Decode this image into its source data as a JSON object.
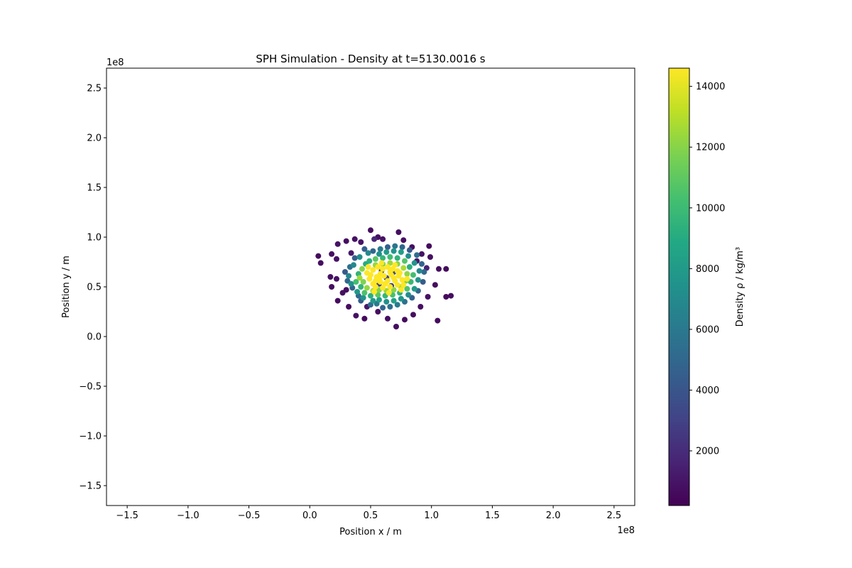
{
  "chart_data": {
    "type": "scatter",
    "title": "SPH Simulation - Density at t=5130.0016 s",
    "xlabel": "Position x / m",
    "ylabel": "Position y / m",
    "x_offset_label": "1e8",
    "y_offset_label": "1e8",
    "xlim": [
      -1.67,
      2.67
    ],
    "ylim": [
      -1.7,
      2.7
    ],
    "x_unit_multiplier": 100000000,
    "y_unit_multiplier": 100000000,
    "xticks": [
      {
        "value": -1.5,
        "label": "−1.5"
      },
      {
        "value": -1.0,
        "label": "−1.0"
      },
      {
        "value": -0.5,
        "label": "−0.5"
      },
      {
        "value": 0.0,
        "label": "0.0"
      },
      {
        "value": 0.5,
        "label": "0.5"
      },
      {
        "value": 1.0,
        "label": "1.0"
      },
      {
        "value": 1.5,
        "label": "1.5"
      },
      {
        "value": 2.0,
        "label": "2.0"
      },
      {
        "value": 2.5,
        "label": "2.5"
      }
    ],
    "yticks": [
      {
        "value": -1.5,
        "label": "−1.5"
      },
      {
        "value": -1.0,
        "label": "−1.0"
      },
      {
        "value": -0.5,
        "label": "−0.5"
      },
      {
        "value": 0.0,
        "label": "0.0"
      },
      {
        "value": 0.5,
        "label": "0.5"
      },
      {
        "value": 1.0,
        "label": "1.0"
      },
      {
        "value": 1.5,
        "label": "1.5"
      },
      {
        "value": 2.0,
        "label": "2.0"
      },
      {
        "value": 2.5,
        "label": "2.5"
      }
    ],
    "grid": false,
    "colormap": "viridis",
    "colorbar": {
      "label": "Density ρ / kg/m³",
      "range": [
        200,
        14600
      ],
      "ticks": [
        {
          "value": 2000,
          "label": "2000"
        },
        {
          "value": 4000,
          "label": "4000"
        },
        {
          "value": 6000,
          "label": "6000"
        },
        {
          "value": 8000,
          "label": "8000"
        },
        {
          "value": 10000,
          "label": "10000"
        },
        {
          "value": 12000,
          "label": "12000"
        },
        {
          "value": 14000,
          "label": "14000"
        }
      ]
    },
    "points": [
      [
        0.07,
        0.81,
        600
      ],
      [
        0.09,
        0.74,
        700
      ],
      [
        0.18,
        0.83,
        800
      ],
      [
        0.23,
        0.93,
        900
      ],
      [
        0.3,
        0.96,
        700
      ],
      [
        0.37,
        0.98,
        800
      ],
      [
        0.5,
        1.07,
        700
      ],
      [
        0.56,
        1.0,
        800
      ],
      [
        0.6,
        0.98,
        900
      ],
      [
        0.73,
        1.05,
        700
      ],
      [
        0.77,
        0.97,
        800
      ],
      [
        0.84,
        0.9,
        700
      ],
      [
        0.98,
        0.91,
        600
      ],
      [
        0.92,
        0.83,
        900
      ],
      [
        0.99,
        0.8,
        800
      ],
      [
        1.06,
        0.68,
        700
      ],
      [
        1.12,
        0.68,
        600
      ],
      [
        1.03,
        0.52,
        700
      ],
      [
        1.12,
        0.4,
        600
      ],
      [
        1.16,
        0.41,
        700
      ],
      [
        1.05,
        0.16,
        600
      ],
      [
        0.97,
        0.4,
        900
      ],
      [
        0.91,
        0.3,
        800
      ],
      [
        0.85,
        0.22,
        700
      ],
      [
        0.78,
        0.17,
        600
      ],
      [
        0.71,
        0.1,
        700
      ],
      [
        0.64,
        0.18,
        800
      ],
      [
        0.56,
        0.25,
        700
      ],
      [
        0.45,
        0.18,
        600
      ],
      [
        0.38,
        0.21,
        800
      ],
      [
        0.32,
        0.3,
        700
      ],
      [
        0.23,
        0.36,
        600
      ],
      [
        0.18,
        0.5,
        700
      ],
      [
        0.17,
        0.6,
        800
      ],
      [
        0.22,
        0.58,
        900
      ],
      [
        0.27,
        0.44,
        800
      ],
      [
        0.3,
        0.47,
        700
      ],
      [
        0.22,
        0.78,
        900
      ],
      [
        0.34,
        0.84,
        1200
      ],
      [
        0.42,
        0.95,
        1000
      ],
      [
        0.47,
        0.3,
        1200
      ],
      [
        0.88,
        0.76,
        1100
      ],
      [
        0.96,
        0.69,
        1500
      ],
      [
        0.53,
        0.98,
        1800
      ],
      [
        0.29,
        0.65,
        4200
      ],
      [
        0.31,
        0.56,
        5000
      ],
      [
        0.33,
        0.7,
        5500
      ],
      [
        0.35,
        0.49,
        4800
      ],
      [
        0.37,
        0.79,
        4400
      ],
      [
        0.4,
        0.41,
        5200
      ],
      [
        0.42,
        0.36,
        4600
      ],
      [
        0.45,
        0.88,
        4500
      ],
      [
        0.5,
        0.32,
        5300
      ],
      [
        0.55,
        0.33,
        6000
      ],
      [
        0.6,
        0.29,
        4900
      ],
      [
        0.66,
        0.3,
        5400
      ],
      [
        0.72,
        0.32,
        6100
      ],
      [
        0.78,
        0.35,
        5600
      ],
      [
        0.84,
        0.39,
        4700
      ],
      [
        0.89,
        0.46,
        5000
      ],
      [
        0.93,
        0.55,
        4300
      ],
      [
        0.94,
        0.65,
        5200
      ],
      [
        0.92,
        0.73,
        4800
      ],
      [
        0.88,
        0.82,
        5500
      ],
      [
        0.82,
        0.87,
        4400
      ],
      [
        0.76,
        0.9,
        5000
      ],
      [
        0.7,
        0.91,
        5800
      ],
      [
        0.64,
        0.9,
        4600
      ],
      [
        0.58,
        0.88,
        6200
      ],
      [
        0.52,
        0.86,
        5000
      ],
      [
        0.32,
        0.61,
        6800
      ],
      [
        0.34,
        0.53,
        7400
      ],
      [
        0.36,
        0.72,
        7000
      ],
      [
        0.39,
        0.45,
        7800
      ],
      [
        0.41,
        0.8,
        7200
      ],
      [
        0.44,
        0.39,
        7600
      ],
      [
        0.48,
        0.84,
        7000
      ],
      [
        0.52,
        0.36,
        7900
      ],
      [
        0.57,
        0.37,
        8200
      ],
      [
        0.63,
        0.35,
        7300
      ],
      [
        0.69,
        0.36,
        8400
      ],
      [
        0.75,
        0.38,
        7700
      ],
      [
        0.81,
        0.42,
        7200
      ],
      [
        0.86,
        0.48,
        8000
      ],
      [
        0.89,
        0.57,
        7500
      ],
      [
        0.9,
        0.66,
        7000
      ],
      [
        0.86,
        0.74,
        7800
      ],
      [
        0.81,
        0.81,
        7300
      ],
      [
        0.75,
        0.85,
        8300
      ],
      [
        0.69,
        0.86,
        7600
      ],
      [
        0.63,
        0.85,
        8100
      ],
      [
        0.57,
        0.83,
        7400
      ],
      [
        0.46,
        0.73,
        9000
      ],
      [
        0.4,
        0.63,
        9500
      ],
      [
        0.38,
        0.55,
        10200
      ],
      [
        0.42,
        0.5,
        9600
      ],
      [
        0.45,
        0.44,
        10500
      ],
      [
        0.5,
        0.41,
        9200
      ],
      [
        0.56,
        0.42,
        10800
      ],
      [
        0.62,
        0.41,
        9700
      ],
      [
        0.68,
        0.42,
        10300
      ],
      [
        0.74,
        0.44,
        9400
      ],
      [
        0.8,
        0.48,
        10600
      ],
      [
        0.83,
        0.55,
        9800
      ],
      [
        0.85,
        0.62,
        10200
      ],
      [
        0.82,
        0.7,
        9300
      ],
      [
        0.78,
        0.76,
        10700
      ],
      [
        0.72,
        0.79,
        9500
      ],
      [
        0.66,
        0.8,
        10100
      ],
      [
        0.6,
        0.79,
        9700
      ],
      [
        0.54,
        0.78,
        10900
      ],
      [
        0.49,
        0.76,
        9400
      ],
      [
        0.43,
        0.68,
        12000
      ],
      [
        0.41,
        0.59,
        12500
      ],
      [
        0.44,
        0.55,
        11800
      ],
      [
        0.47,
        0.49,
        12300
      ],
      [
        0.52,
        0.46,
        12700
      ],
      [
        0.57,
        0.47,
        11900
      ],
      [
        0.63,
        0.46,
        12400
      ],
      [
        0.69,
        0.47,
        12100
      ],
      [
        0.75,
        0.5,
        12600
      ],
      [
        0.79,
        0.56,
        11700
      ],
      [
        0.8,
        0.63,
        12200
      ],
      [
        0.77,
        0.69,
        12800
      ],
      [
        0.72,
        0.73,
        12000
      ],
      [
        0.66,
        0.74,
        12400
      ],
      [
        0.6,
        0.73,
        11800
      ],
      [
        0.54,
        0.72,
        12300
      ],
      [
        0.47,
        0.64,
        14600
      ],
      [
        0.49,
        0.58,
        14600
      ],
      [
        0.52,
        0.53,
        14600
      ],
      [
        0.55,
        0.6,
        14600
      ],
      [
        0.58,
        0.55,
        14600
      ],
      [
        0.61,
        0.61,
        14600
      ],
      [
        0.64,
        0.56,
        14600
      ],
      [
        0.67,
        0.62,
        14600
      ],
      [
        0.7,
        0.56,
        14600
      ],
      [
        0.73,
        0.61,
        14600
      ],
      [
        0.76,
        0.57,
        14600
      ],
      [
        0.52,
        0.67,
        14600
      ],
      [
        0.56,
        0.7,
        14600
      ],
      [
        0.6,
        0.68,
        14600
      ],
      [
        0.64,
        0.7,
        14600
      ],
      [
        0.68,
        0.68,
        14600
      ],
      [
        0.72,
        0.66,
        14600
      ],
      [
        0.54,
        0.5,
        14600
      ],
      [
        0.6,
        0.49,
        14600
      ],
      [
        0.66,
        0.5,
        14600
      ],
      [
        0.72,
        0.52,
        14600
      ],
      [
        0.77,
        0.52,
        14600
      ],
      [
        0.5,
        0.62,
        14600
      ],
      [
        0.58,
        0.63,
        14600
      ],
      [
        0.66,
        0.65,
        14600
      ],
      [
        0.74,
        0.64,
        14600
      ],
      [
        0.62,
        0.53,
        14600
      ],
      [
        0.69,
        0.59,
        14600
      ],
      [
        0.57,
        0.58,
        14600
      ],
      [
        0.54,
        0.56,
        14600
      ],
      [
        0.8,
        0.58,
        14600
      ],
      [
        0.48,
        0.7,
        14600
      ],
      [
        0.59,
        0.74,
        14600
      ],
      [
        0.7,
        0.72,
        14600
      ],
      [
        0.65,
        0.44,
        14600
      ],
      [
        0.53,
        0.45,
        14600
      ],
      [
        0.75,
        0.47,
        14600
      ],
      [
        0.63,
        0.59,
        3000
      ],
      [
        0.57,
        0.53,
        2800
      ],
      [
        0.69,
        0.65,
        3200
      ],
      [
        0.67,
        0.51,
        2600
      ],
      [
        0.59,
        0.66,
        3100
      ]
    ]
  }
}
